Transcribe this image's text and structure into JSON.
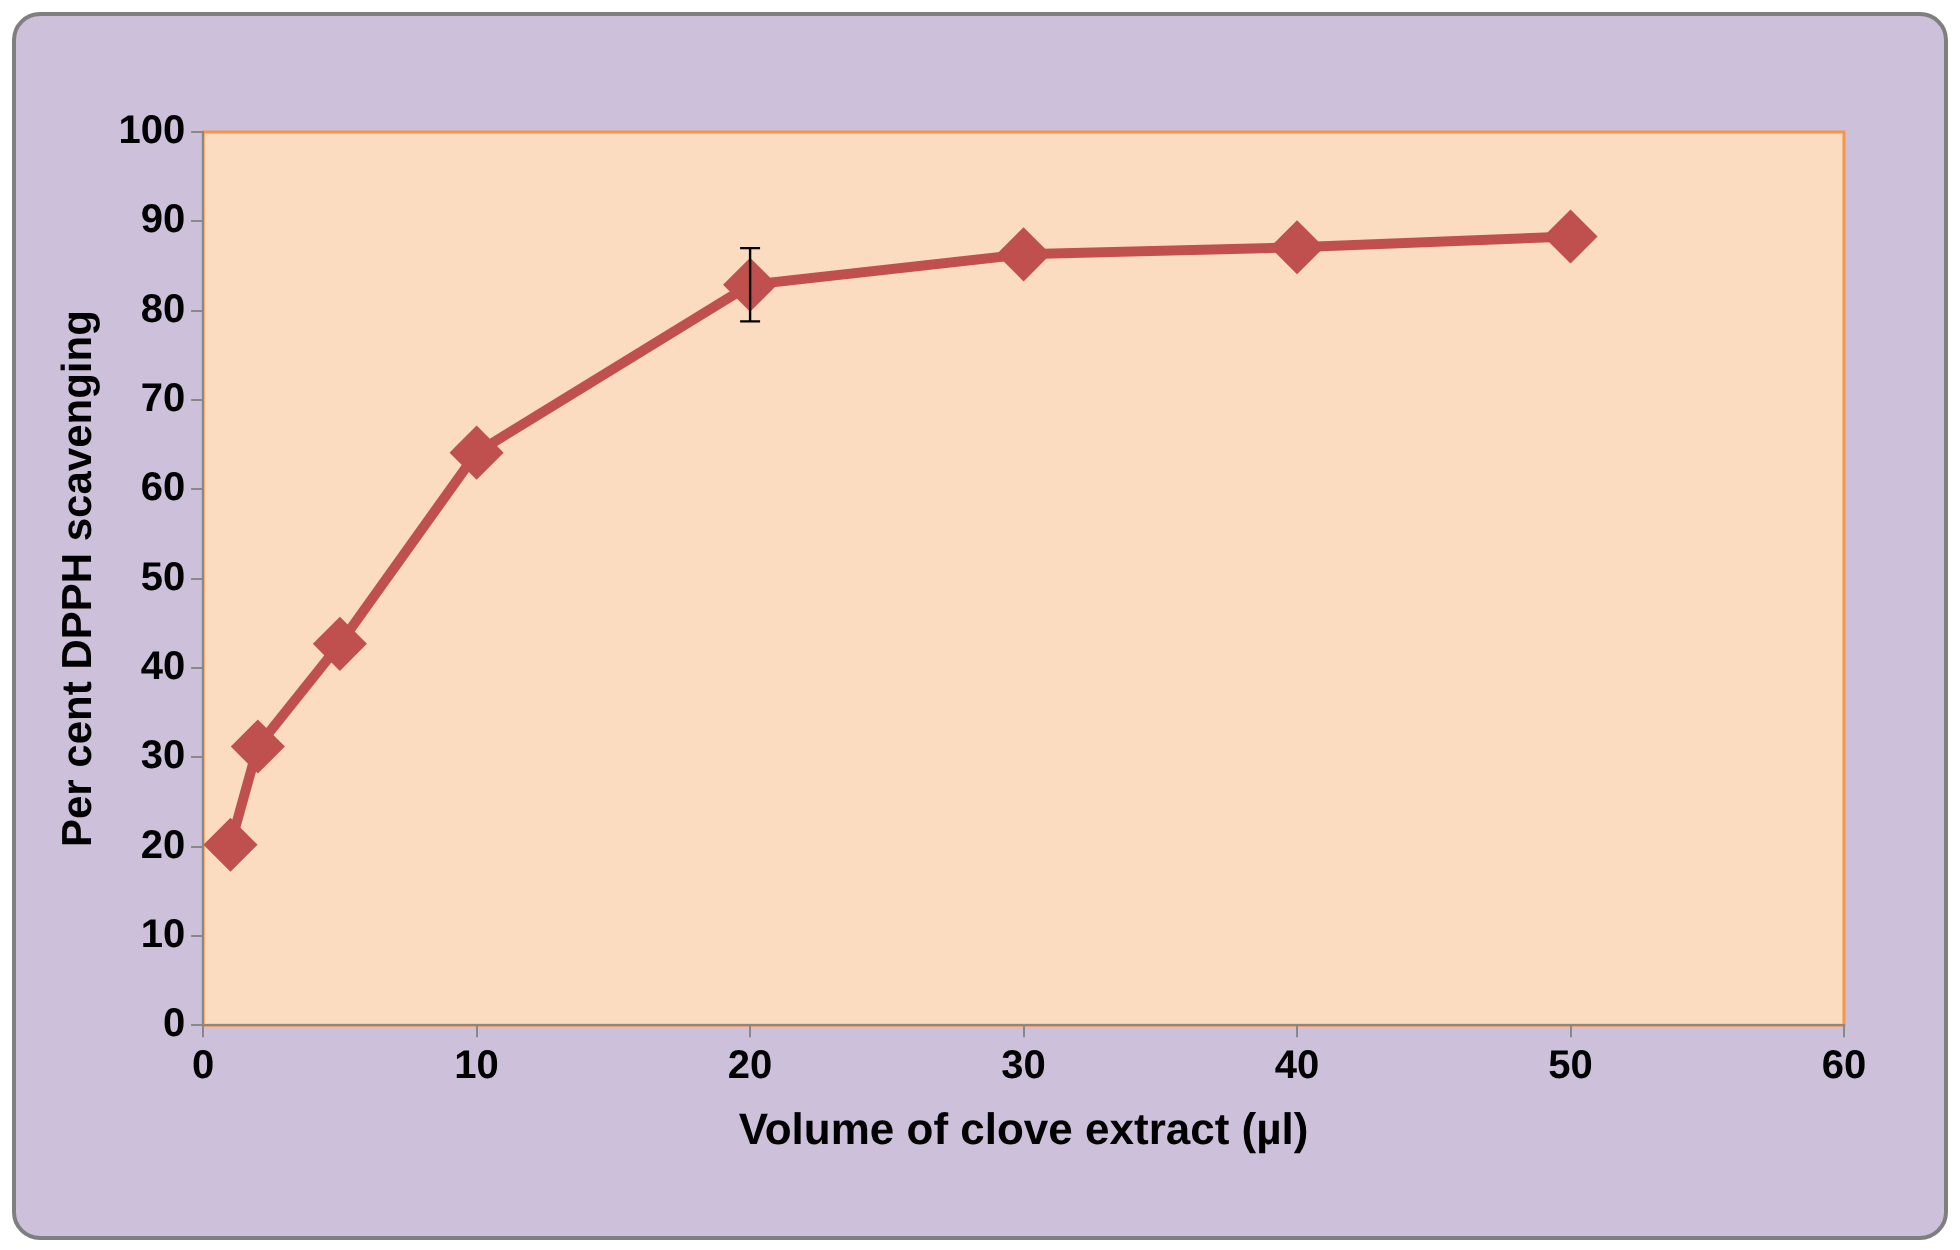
{
  "chart_data": {
    "type": "line",
    "xlabel": "Volume of clove extract (µl)",
    "ylabel": "Per cent DPPH scavenging",
    "x": [
      1,
      2,
      5,
      10,
      20,
      30,
      40,
      50
    ],
    "series": [
      {
        "color": "#c0504d",
        "values": [
          20.2,
          31.2,
          42.7,
          64.1,
          82.9,
          86.3,
          87.1,
          88.3
        ],
        "errors": [
          null,
          null,
          null,
          null,
          4.1,
          null,
          null,
          null
        ]
      }
    ],
    "xlim": [
      0,
      60
    ],
    "xticks": [
      0,
      10,
      20,
      30,
      40,
      50,
      60
    ],
    "ylim": [
      0,
      100
    ],
    "yticks": [
      0,
      10,
      20,
      30,
      40,
      50,
      60,
      70,
      80,
      90,
      100
    ],
    "grid": false,
    "legend": false,
    "marker": "diamond",
    "line_style": "solid"
  }
}
